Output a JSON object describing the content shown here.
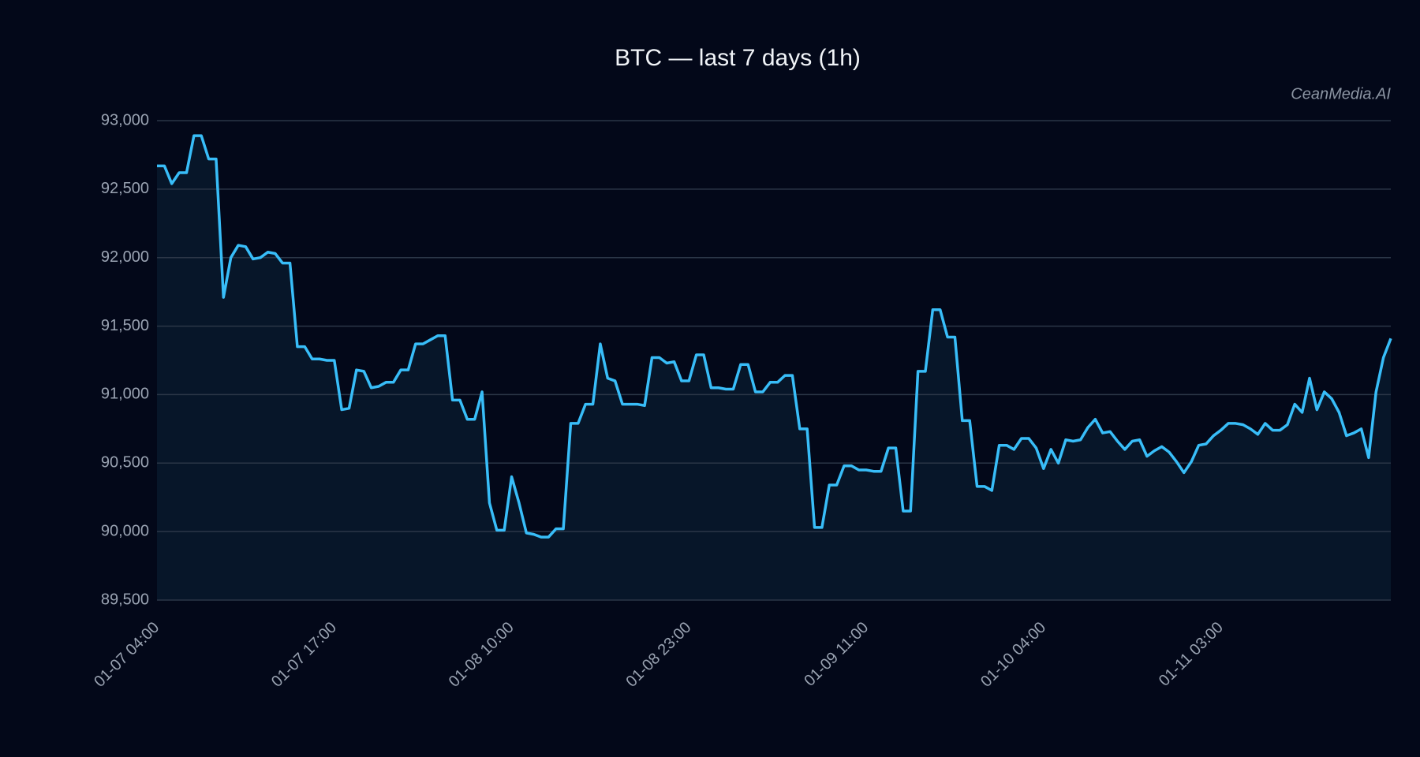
{
  "chart_data": {
    "type": "line",
    "title": "BTC — last 7 days (1h)",
    "annotation": "CeanMedia.AI",
    "categories": [
      "01-07 04:00",
      null,
      null,
      null,
      null,
      null,
      null,
      null,
      null,
      null,
      null,
      null,
      null,
      null,
      null,
      null,
      null,
      null,
      null,
      null,
      null,
      null,
      null,
      null,
      "01-07 17:00",
      null,
      null,
      null,
      null,
      null,
      null,
      null,
      null,
      null,
      null,
      null,
      null,
      null,
      null,
      null,
      null,
      null,
      null,
      null,
      null,
      null,
      null,
      null,
      "01-08 10:00",
      null,
      null,
      null,
      null,
      null,
      null,
      null,
      null,
      null,
      null,
      null,
      null,
      null,
      null,
      null,
      null,
      null,
      null,
      null,
      null,
      null,
      null,
      null,
      "01-08 23:00",
      null,
      null,
      null,
      null,
      null,
      null,
      null,
      null,
      null,
      null,
      null,
      null,
      null,
      null,
      null,
      null,
      null,
      null,
      null,
      null,
      null,
      null,
      null,
      "01-09 11:00",
      null,
      null,
      null,
      null,
      null,
      null,
      null,
      null,
      null,
      null,
      null,
      null,
      null,
      null,
      null,
      null,
      null,
      null,
      null,
      null,
      null,
      null,
      null,
      "01-10 04:00",
      null,
      null,
      null,
      null,
      null,
      null,
      null,
      null,
      null,
      null,
      null,
      null,
      null,
      null,
      null,
      null,
      null,
      null,
      null,
      null,
      null,
      null,
      null,
      "01-11 03:00",
      null,
      null,
      null,
      null,
      null,
      null,
      null,
      null,
      null,
      null,
      null,
      null,
      null,
      null,
      null,
      null,
      null,
      null,
      null,
      null,
      null,
      null,
      null
    ],
    "values": [
      92670,
      92670,
      92540,
      92620,
      92620,
      92890,
      92890,
      92720,
      92720,
      91710,
      92000,
      92090,
      92080,
      91990,
      92000,
      92040,
      92030,
      91960,
      91960,
      91350,
      91350,
      91260,
      91260,
      91250,
      91250,
      90890,
      90900,
      91180,
      91170,
      91050,
      91060,
      91090,
      91090,
      91180,
      91180,
      91370,
      91370,
      91400,
      91430,
      91430,
      90960,
      90960,
      90820,
      90820,
      91020,
      90210,
      90010,
      90010,
      90400,
      90210,
      89990,
      89980,
      89960,
      89960,
      90020,
      90020,
      90790,
      90790,
      90930,
      90930,
      91370,
      91120,
      91100,
      90930,
      90930,
      90930,
      90920,
      91270,
      91270,
      91230,
      91240,
      91100,
      91100,
      91290,
      91290,
      91050,
      91050,
      91040,
      91040,
      91220,
      91220,
      91020,
      91020,
      91090,
      91090,
      91140,
      91140,
      90750,
      90750,
      90030,
      90030,
      90340,
      90340,
      90480,
      90480,
      90450,
      90450,
      90440,
      90440,
      90610,
      90610,
      90150,
      90150,
      91170,
      91170,
      91620,
      91620,
      91420,
      91420,
      90810,
      90810,
      90330,
      90330,
      90300,
      90630,
      90630,
      90600,
      90680,
      90680,
      90610,
      90460,
      90600,
      90500,
      90670,
      90660,
      90670,
      90760,
      90820,
      90720,
      90730,
      90660,
      90600,
      90660,
      90670,
      90550,
      90590,
      90620,
      90580,
      90510,
      90430,
      90510,
      90630,
      90640,
      90700,
      90740,
      90790,
      90790,
      90780,
      90750,
      90710,
      90790,
      90740,
      90740,
      90780,
      90930,
      90870,
      91120,
      90890,
      91020,
      90970,
      90870,
      90700,
      90720,
      90750,
      90540,
      91020,
      91270,
      91410
    ],
    "color": "#38bdf8",
    "area_color": "#071629",
    "ylim": [
      89500,
      93000
    ],
    "yticks": [
      {
        "value": 89500,
        "label": "89,500"
      },
      {
        "value": 90000,
        "label": "90,000"
      },
      {
        "value": 90500,
        "label": "90,500"
      },
      {
        "value": 91000,
        "label": "91,000"
      },
      {
        "value": 91500,
        "label": "91,500"
      },
      {
        "value": 92000,
        "label": "92,000"
      },
      {
        "value": 92500,
        "label": "92,500"
      },
      {
        "value": 93000,
        "label": "93,000"
      }
    ],
    "grid": true,
    "area": true
  }
}
